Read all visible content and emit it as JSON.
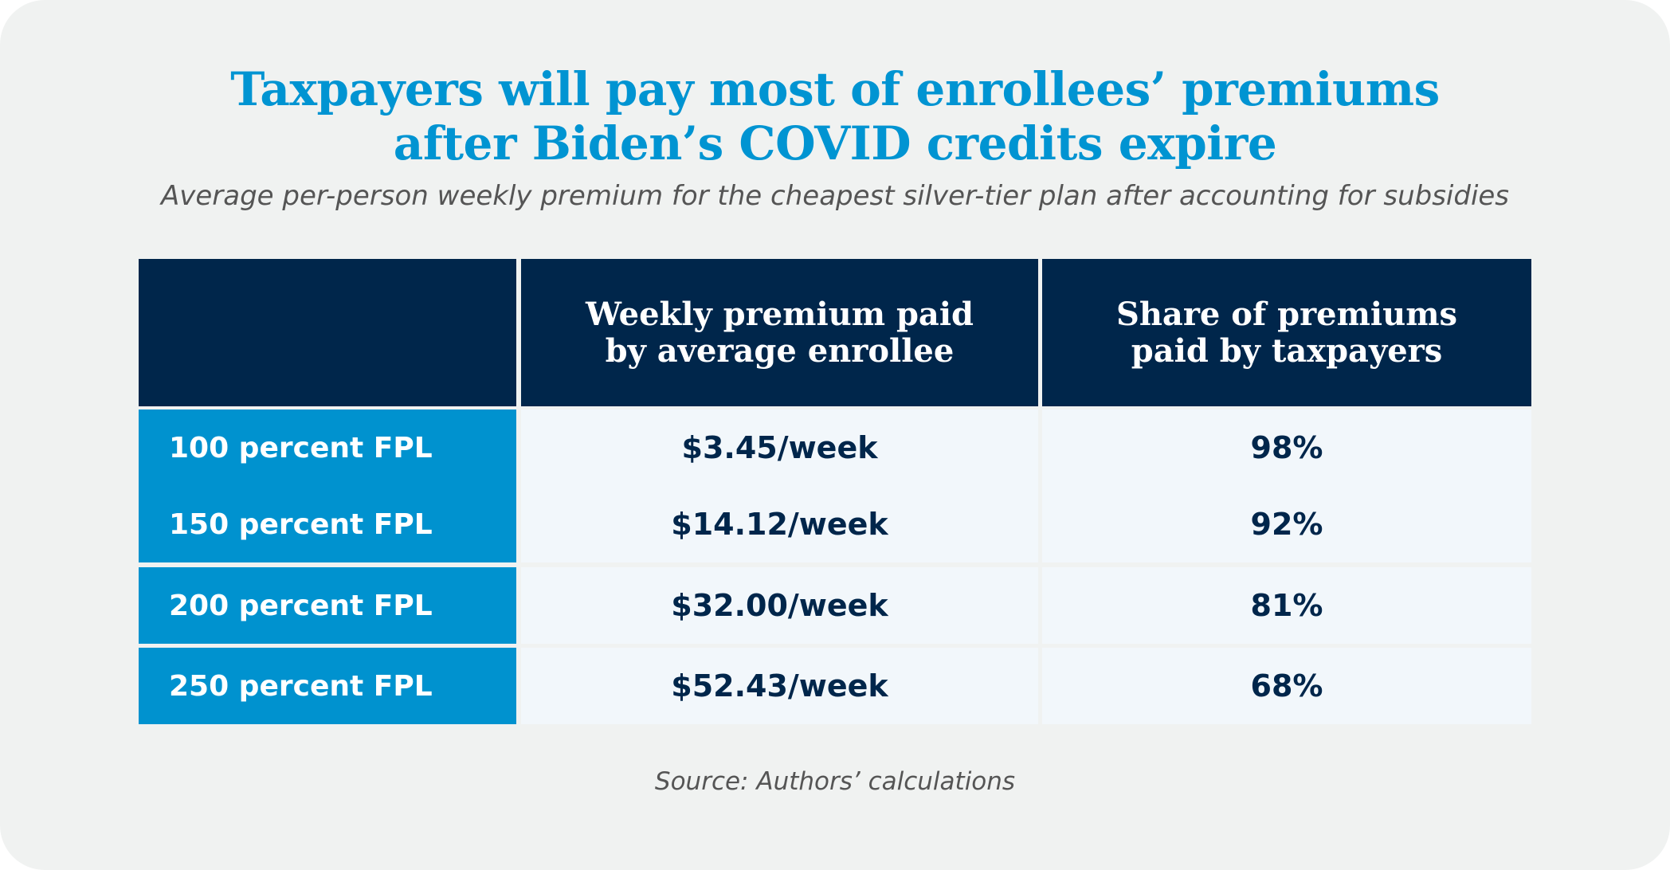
{
  "title_line1": "Taxpayers will pay most of enrollees’ premiums",
  "title_line2": "after Biden’s COVID credits expire",
  "subtitle": "Average per-person weekly premium for the cheapest silver-tier plan after accounting for subsidies",
  "table": {
    "headers": [
      "",
      "Weekly premium paid by average enrollee",
      "Share of premiums paid by taxpayers"
    ],
    "rows": [
      {
        "label": "100 percent FPL",
        "premium": "$3.45/week",
        "share": "98%"
      },
      {
        "label": "150 percent FPL",
        "premium": "$14.12/week",
        "share": "92%"
      },
      {
        "label": "200 percent FPL",
        "premium": "$32.00/week",
        "share": "81%"
      },
      {
        "label": "250 percent FPL",
        "premium": "$52.43/week",
        "share": "68%"
      }
    ]
  },
  "source": "Source: Authors’ calculations",
  "colors": {
    "title": "#0094d2",
    "header_bg": "#00264b",
    "row_label_bg": "#0092cf",
    "cell_bg": "#f2f7fb"
  }
}
